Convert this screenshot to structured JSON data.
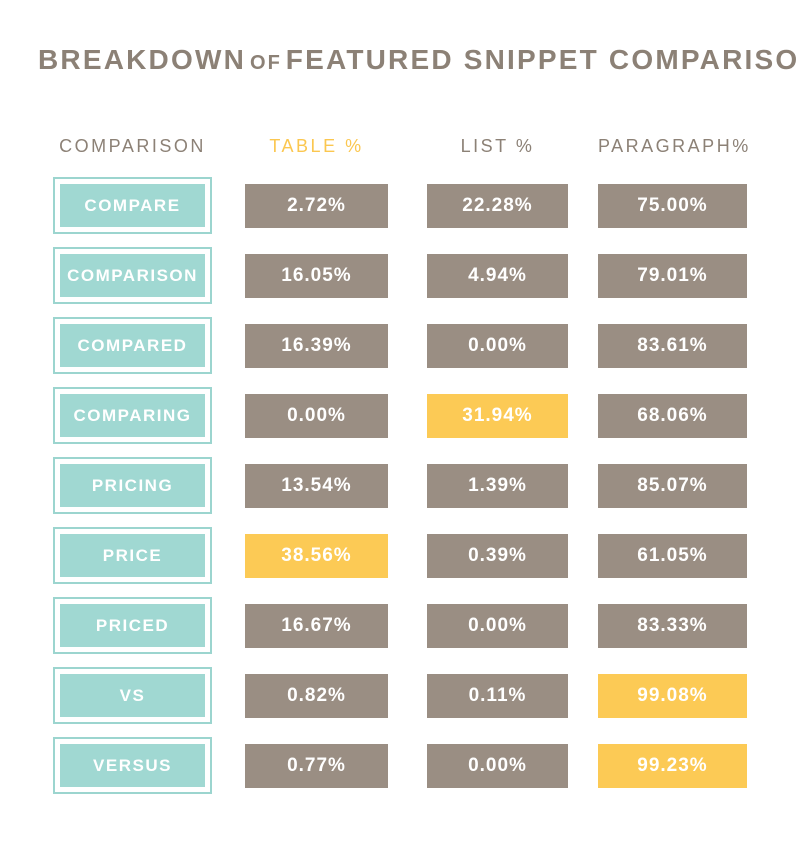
{
  "title": {
    "part1": "BREAKDOWN",
    "connector": "OF",
    "part2": "FEATURED SNIPPET COMPARISONS"
  },
  "header": {
    "comparison": "COMPARISON",
    "table": "TABLE %",
    "list": "LIST %",
    "paragraph": "PARAGRAPH%"
  },
  "colors": {
    "teal": "#A0D8D2",
    "taupe": "#9A8E83",
    "highlight_yellow": "#FCCA55",
    "heading_text": "#8C8176",
    "box_text": "#FFFFFF"
  },
  "rows": [
    {
      "keyword": "COMPARE",
      "table": "2.72%",
      "table_hl": false,
      "list": "22.28%",
      "list_hl": false,
      "paragraph": "75.00%",
      "paragraph_hl": false
    },
    {
      "keyword": "COMPARISON",
      "table": "16.05%",
      "table_hl": false,
      "list": "4.94%",
      "list_hl": false,
      "paragraph": "79.01%",
      "paragraph_hl": false
    },
    {
      "keyword": "COMPARED",
      "table": "16.39%",
      "table_hl": false,
      "list": "0.00%",
      "list_hl": false,
      "paragraph": "83.61%",
      "paragraph_hl": false
    },
    {
      "keyword": "COMPARING",
      "table": "0.00%",
      "table_hl": false,
      "list": "31.94%",
      "list_hl": true,
      "paragraph": "68.06%",
      "paragraph_hl": false
    },
    {
      "keyword": "PRICING",
      "table": "13.54%",
      "table_hl": false,
      "list": "1.39%",
      "list_hl": false,
      "paragraph": "85.07%",
      "paragraph_hl": false
    },
    {
      "keyword": "PRICE",
      "table": "38.56%",
      "table_hl": true,
      "list": "0.39%",
      "list_hl": false,
      "paragraph": "61.05%",
      "paragraph_hl": false
    },
    {
      "keyword": "PRICED",
      "table": "16.67%",
      "table_hl": false,
      "list": "0.00%",
      "list_hl": false,
      "paragraph": "83.33%",
      "paragraph_hl": false
    },
    {
      "keyword": "VS",
      "table": "0.82%",
      "table_hl": false,
      "list": "0.11%",
      "list_hl": false,
      "paragraph": "99.08%",
      "paragraph_hl": true
    },
    {
      "keyword": "VERSUS",
      "table": "0.77%",
      "table_hl": false,
      "list": "0.00%",
      "list_hl": false,
      "paragraph": "99.23%",
      "paragraph_hl": true
    }
  ],
  "chart_data": {
    "type": "table",
    "title": "Breakdown of Featured Snippet Comparisons",
    "categories": [
      "COMPARE",
      "COMPARISON",
      "COMPARED",
      "COMPARING",
      "PRICING",
      "PRICE",
      "PRICED",
      "VS",
      "VERSUS"
    ],
    "series": [
      {
        "name": "TABLE %",
        "values": [
          2.72,
          16.05,
          16.39,
          0.0,
          13.54,
          38.56,
          16.67,
          0.82,
          0.77
        ]
      },
      {
        "name": "LIST %",
        "values": [
          22.28,
          4.94,
          0.0,
          31.94,
          1.39,
          0.39,
          0.0,
          0.11,
          0.0
        ]
      },
      {
        "name": "PARAGRAPH %",
        "values": [
          75.0,
          79.01,
          83.61,
          68.06,
          85.07,
          61.05,
          83.33,
          99.08,
          99.23
        ]
      }
    ],
    "highlighted_cells": [
      {
        "category": "COMPARING",
        "series": "LIST %",
        "value": 31.94
      },
      {
        "category": "PRICE",
        "series": "TABLE %",
        "value": 38.56
      },
      {
        "category": "VS",
        "series": "PARAGRAPH %",
        "value": 99.08
      },
      {
        "category": "VERSUS",
        "series": "PARAGRAPH %",
        "value": 99.23
      }
    ]
  }
}
